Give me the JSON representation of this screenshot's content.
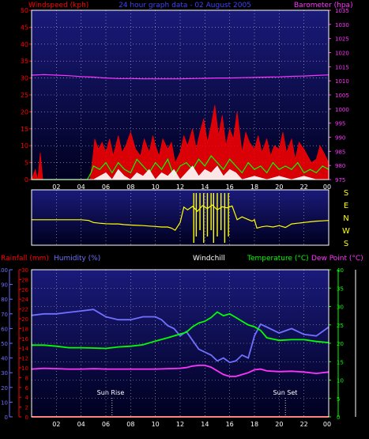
{
  "header": {
    "left_title": "Windspeed (kph)",
    "center_title": "24 hour graph data - 02 August 2005",
    "right_title": "Barometer (hpa)"
  },
  "colors": {
    "background": "#000000",
    "plot_top": "#1a1a7a",
    "plot_bottom": "#000020",
    "wind_gust": "#ff0000",
    "wind_avg": "#00ff00",
    "wind_low": "#ffffff",
    "barometer": "#ff33ff",
    "wind_dir": "#ffff00",
    "rainfall": "#ff0000",
    "humidity": "#7070ff",
    "temperature": "#00ff00",
    "dew_point": "#ff33ff",
    "grid": "#ffffff",
    "white_axis": "#ffffff"
  },
  "x_ticks": [
    "02",
    "04",
    "06",
    "08",
    "10",
    "12",
    "14",
    "16",
    "18",
    "20",
    "22",
    "00"
  ],
  "chart_data": [
    {
      "type": "line",
      "title": "24 hour graph data - 02 August 2005",
      "xlabel": "",
      "xlim": [
        0,
        24
      ],
      "y_left": {
        "label": "Windspeed (kph)",
        "lim": [
          0,
          50
        ],
        "ticks": [
          0,
          5,
          10,
          15,
          20,
          25,
          30,
          35,
          40,
          45,
          50
        ]
      },
      "y_right": {
        "label": "Barometer (hpa)",
        "lim": [
          975,
          1035
        ],
        "ticks": [
          975,
          980,
          985,
          990,
          995,
          1000,
          1005,
          1010,
          1015,
          1020,
          1025,
          1030,
          1035
        ]
      },
      "grid": true,
      "series": [
        {
          "name": "Windspeed (kph)",
          "role": "gust",
          "axis": "left",
          "x": [
            0.0,
            0.3,
            0.5,
            0.7,
            0.9,
            1.2,
            1.6,
            2.0,
            2.5,
            3.0,
            3.5,
            4.0,
            4.4,
            4.7,
            4.9,
            5.1,
            5.4,
            5.7,
            6.0,
            6.3,
            6.6,
            7.0,
            7.3,
            7.6,
            8.0,
            8.4,
            8.8,
            9.1,
            9.5,
            9.8,
            10.0,
            10.3,
            10.6,
            11.0,
            11.3,
            11.6,
            12.0,
            12.3,
            12.6,
            13.0,
            13.3,
            13.6,
            13.9,
            14.2,
            14.5,
            14.8,
            15.1,
            15.4,
            15.7,
            16.0,
            16.3,
            16.6,
            17.0,
            17.3,
            17.6,
            18.0,
            18.3,
            18.6,
            19.0,
            19.3,
            19.6,
            20.0,
            20.3,
            20.6,
            21.0,
            21.3,
            21.6,
            22.0,
            22.3,
            22.6,
            23.0,
            23.3,
            23.6,
            24.0
          ],
          "y": [
            0,
            3,
            0,
            8,
            0,
            0,
            0,
            0,
            0,
            0,
            0,
            0,
            0,
            0,
            5,
            12,
            9,
            11,
            8,
            12,
            7,
            13,
            8,
            10,
            14,
            9,
            7,
            12,
            8,
            13,
            10,
            7,
            12,
            9,
            11,
            5,
            8,
            13,
            10,
            15,
            9,
            14,
            18,
            11,
            16,
            22,
            13,
            19,
            10,
            15,
            12,
            20,
            8,
            14,
            11,
            9,
            13,
            8,
            12,
            7,
            10,
            9,
            14,
            8,
            12,
            6,
            11,
            9,
            7,
            5,
            6,
            10,
            8,
            5
          ]
        },
        {
          "name": "Windspeed (kph)",
          "role": "average",
          "axis": "left",
          "x": [
            0.0,
            4.5,
            4.8,
            5.0,
            5.5,
            6.0,
            6.5,
            7.0,
            7.5,
            8.0,
            8.5,
            9.0,
            9.5,
            10.0,
            10.5,
            11.0,
            11.5,
            12.0,
            12.5,
            13.0,
            13.5,
            14.0,
            14.5,
            15.0,
            15.5,
            16.0,
            16.5,
            17.0,
            17.5,
            18.0,
            18.5,
            19.0,
            19.5,
            20.0,
            20.5,
            21.0,
            21.5,
            22.0,
            22.5,
            23.0,
            23.5,
            24.0
          ],
          "y": [
            0,
            0,
            2,
            4,
            3,
            5,
            2,
            5,
            3,
            2,
            6,
            4,
            2,
            5,
            3,
            6,
            1,
            4,
            5,
            3,
            6,
            4,
            7,
            5,
            3,
            6,
            4,
            2,
            5,
            3,
            4,
            2,
            5,
            3,
            4,
            3,
            5,
            2,
            3,
            2,
            4,
            3
          ]
        },
        {
          "name": "Windspeed (kph)",
          "role": "low",
          "axis": "left",
          "x": [
            0.0,
            5.0,
            5.5,
            6.0,
            6.5,
            7.0,
            7.5,
            8.0,
            8.5,
            9.0,
            9.5,
            10.0,
            10.5,
            11.0,
            11.5,
            12.0,
            12.5,
            13.0,
            13.5,
            14.0,
            14.5,
            15.0,
            15.5,
            16.0,
            16.5,
            17.0,
            18.0,
            19.0,
            20.0,
            21.0,
            22.0,
            23.0,
            24.0
          ],
          "y": [
            0,
            0,
            1,
            2,
            0,
            3,
            1,
            0,
            2,
            1,
            3,
            0,
            2,
            1,
            3,
            0,
            2,
            4,
            1,
            3,
            2,
            4,
            1,
            3,
            2,
            0,
            1,
            0,
            1,
            0,
            1,
            0,
            0
          ]
        },
        {
          "name": "Barometer (hpa)",
          "axis": "right",
          "x": [
            0,
            1,
            2,
            3,
            4,
            5,
            6,
            7,
            8,
            9,
            10,
            11,
            12,
            13,
            14,
            15,
            16,
            17,
            18,
            19,
            20,
            21,
            22,
            23,
            24
          ],
          "y": [
            1012.0,
            1012.2,
            1012.0,
            1011.8,
            1011.5,
            1011.3,
            1011.0,
            1010.8,
            1010.8,
            1010.7,
            1010.7,
            1010.7,
            1010.7,
            1010.8,
            1010.9,
            1011.0,
            1011.0,
            1011.1,
            1011.2,
            1011.3,
            1011.4,
            1011.6,
            1011.7,
            1011.9,
            1012.1
          ]
        }
      ]
    },
    {
      "type": "line",
      "title": "",
      "xlim": [
        0,
        24
      ],
      "y_right_labels": [
        "S",
        "E",
        "N",
        "W",
        "S"
      ],
      "series": [
        {
          "name": "",
          "role": "wind direction",
          "x": [
            0,
            1,
            2,
            3,
            4,
            4.6,
            5,
            5.5,
            6,
            6.5,
            7,
            7.5,
            8,
            8.5,
            9,
            9.5,
            10,
            10.5,
            11,
            11.3,
            11.6,
            12,
            12.3,
            12.6,
            13,
            13.4,
            13.8,
            14.2,
            14.6,
            15,
            15.4,
            15.8,
            16.2,
            16.6,
            17,
            17.4,
            17.8,
            18,
            18.2,
            18.6,
            19,
            19.5,
            20,
            20.5,
            21,
            21.5,
            22,
            22.5,
            23,
            23.5,
            24
          ],
          "y": [
            170,
            170,
            170,
            170,
            170,
            165,
            150,
            145,
            142,
            140,
            140,
            135,
            132,
            130,
            128,
            125,
            122,
            118,
            118,
            110,
            95,
            150,
            260,
            240,
            265,
            230,
            270,
            250,
            275,
            240,
            262,
            255,
            268,
            170,
            190,
            175,
            160,
            170,
            110,
            120,
            125,
            118,
            128,
            115,
            140,
            145,
            150,
            155,
            160,
            162,
            165
          ]
        }
      ]
    },
    {
      "type": "line",
      "title": "",
      "xlim": [
        0,
        24
      ],
      "y_left_outer": {
        "label": "Humidity (%)",
        "lim": [
          0,
          100
        ],
        "ticks": [
          0,
          10,
          20,
          30,
          40,
          50,
          60,
          70,
          80,
          90,
          100
        ]
      },
      "y_left_inner": {
        "label": "Rainfall (mm)",
        "lim": [
          0,
          30
        ],
        "ticks": [
          0,
          2,
          4,
          6,
          8,
          10,
          12,
          14,
          16,
          18,
          20,
          22,
          24,
          26,
          28,
          30
        ]
      },
      "y_right": {
        "label": "Temperature (°C)",
        "lim": [
          0,
          40
        ],
        "ticks": [
          0,
          5,
          10,
          15,
          20,
          25,
          30,
          35,
          40
        ]
      },
      "legend": [
        "Rainfall (mm)",
        "Humidity (%)",
        "Windchill",
        "Temperature (°C)",
        "Dew Point (°C)"
      ],
      "annotations": [
        {
          "text": "Sun Rise",
          "x": 6.5
        },
        {
          "text": "Sun Set",
          "x": 20.5
        }
      ],
      "grid": true,
      "series": [
        {
          "name": "Rainfall (mm)",
          "axis": "rain",
          "x": [
            0,
            24
          ],
          "y": [
            0,
            0
          ]
        },
        {
          "name": "Humidity (%)",
          "axis": "humidity",
          "x": [
            0,
            1,
            2,
            3,
            4,
            5,
            6,
            7,
            8,
            9,
            10,
            10.5,
            11,
            11.5,
            12,
            12.5,
            13,
            13.5,
            14,
            14.5,
            15,
            15.5,
            16,
            16.5,
            17,
            17.5,
            18,
            18.5,
            19,
            20,
            21,
            22,
            23,
            24
          ],
          "y": [
            69,
            70,
            70,
            71,
            72,
            73,
            68,
            66,
            66,
            68,
            68,
            66,
            62,
            60,
            55,
            58,
            52,
            46,
            44,
            42,
            38,
            40,
            37,
            38,
            42,
            40,
            55,
            63,
            61,
            57,
            60,
            56,
            55,
            61
          ]
        },
        {
          "name": "Temperature (°C)",
          "axis": "temp",
          "x": [
            0,
            1,
            2,
            3,
            4,
            5,
            6,
            7,
            8,
            9,
            10,
            11,
            12,
            12.5,
            13,
            13.5,
            14,
            14.5,
            15,
            15.5,
            16,
            16.5,
            17,
            17.5,
            18,
            18.5,
            19,
            20,
            21,
            22,
            23,
            24
          ],
          "y": [
            19.5,
            19.5,
            19.2,
            18.8,
            18.8,
            18.7,
            18.6,
            19.0,
            19.2,
            19.6,
            20.6,
            21.5,
            22.5,
            23.0,
            24.5,
            25.5,
            26.0,
            27.0,
            28.5,
            27.5,
            28.0,
            27.0,
            26.0,
            25.0,
            24.5,
            23.5,
            21.5,
            20.8,
            21.0,
            21.0,
            20.5,
            20.2
          ]
        },
        {
          "name": "Dew Point (°C)",
          "axis": "temp",
          "x": [
            0,
            1,
            2,
            3,
            4,
            5,
            6,
            7,
            8,
            9,
            10,
            11,
            12,
            12.5,
            13,
            13.5,
            14,
            14.5,
            15,
            15.5,
            16,
            16.5,
            17,
            17.5,
            18,
            18.5,
            19,
            20,
            21,
            22,
            23,
            24
          ],
          "y": [
            13.0,
            13.2,
            13.1,
            13.0,
            13.0,
            13.1,
            13.0,
            13.0,
            13.0,
            13.0,
            13.0,
            13.1,
            13.2,
            13.4,
            13.8,
            14.0,
            14.0,
            13.5,
            12.5,
            11.5,
            11.0,
            11.0,
            11.5,
            12.0,
            12.8,
            13.0,
            12.5,
            12.3,
            12.4,
            12.2,
            11.8,
            12.2
          ]
        }
      ]
    }
  ],
  "labels": {
    "dir_letters": [
      "S",
      "E",
      "N",
      "W",
      "S"
    ],
    "rainfall_label": "Rainfall (mm)",
    "humidity_label": "Humidity (%)",
    "windchill_label": "Windchill",
    "temperature_label": "Temperature (°C)",
    "dewpoint_label": "Dew Point (°C)",
    "sunrise": "Sun Rise",
    "sunset": "Sun Set"
  }
}
